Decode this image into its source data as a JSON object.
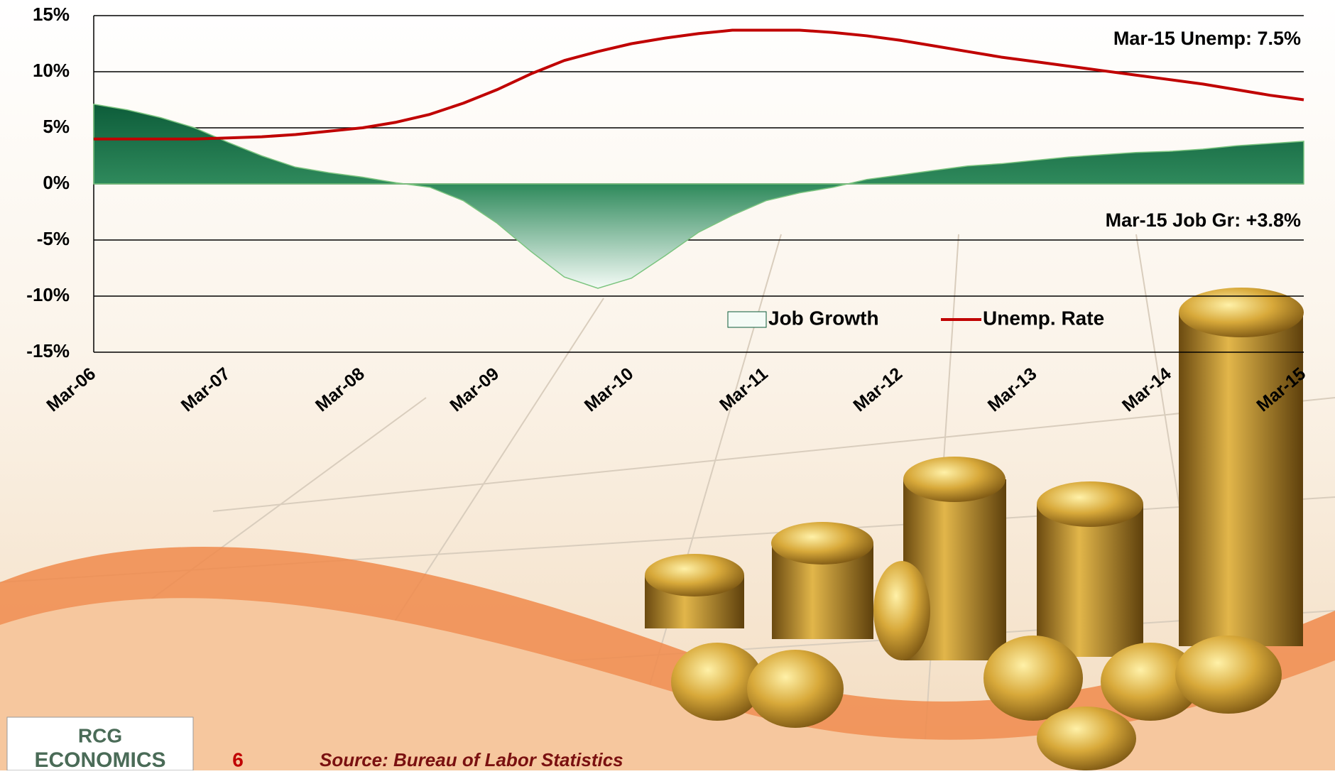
{
  "chart_data": {
    "type": "line",
    "categories": [
      "Mar-06",
      null,
      null,
      null,
      "Mar-07",
      null,
      null,
      null,
      "Mar-08",
      null,
      null,
      null,
      "Mar-09",
      null,
      null,
      null,
      "Mar-10",
      null,
      null,
      null,
      "Mar-11",
      null,
      null,
      null,
      "Mar-12",
      null,
      null,
      null,
      "Mar-13",
      null,
      null,
      null,
      "Mar-14",
      null,
      null,
      null,
      "Mar-15"
    ],
    "series": [
      {
        "name": "Job Growth",
        "type": "area",
        "color": "#0b5a38",
        "values": [
          7.1,
          6.6,
          5.9,
          5.0,
          3.7,
          2.5,
          1.5,
          1.0,
          0.6,
          0.1,
          -0.3,
          -1.5,
          -3.5,
          -6.0,
          -8.3,
          -9.3,
          -8.4,
          -6.4,
          -4.3,
          -2.8,
          -1.5,
          -0.8,
          -0.3,
          0.4,
          0.8,
          1.2,
          1.6,
          1.8,
          2.1,
          2.4,
          2.6,
          2.8,
          2.9,
          3.1,
          3.4,
          3.6,
          3.8
        ]
      },
      {
        "name": "Unemp. Rate",
        "type": "line",
        "color": "#c00000",
        "values": [
          4.0,
          4.0,
          4.0,
          4.0,
          4.1,
          4.2,
          4.4,
          4.7,
          5.0,
          5.5,
          6.2,
          7.2,
          8.4,
          9.8,
          11.0,
          11.8,
          12.5,
          13.0,
          13.4,
          13.7,
          13.7,
          13.7,
          13.5,
          13.2,
          12.8,
          12.3,
          11.8,
          11.3,
          10.9,
          10.5,
          10.1,
          9.7,
          9.3,
          8.9,
          8.4,
          7.9,
          7.5
        ]
      }
    ],
    "ylim": [
      -15,
      15
    ],
    "yticks": [
      {
        "value": -15,
        "label": "-15%"
      },
      {
        "value": -10,
        "label": "-10%"
      },
      {
        "value": -5,
        "label": "-5%"
      },
      {
        "value": 0,
        "label": "0%"
      },
      {
        "value": 5,
        "label": "5%"
      },
      {
        "value": 10,
        "label": "10%"
      },
      {
        "value": 15,
        "label": "15%"
      }
    ],
    "grid": true,
    "annotations": [
      "Mar-15 Unemp: 7.5%",
      "Mar-15 Job Gr: +3.8%"
    ]
  },
  "footer": {
    "logo_top": "RCG",
    "logo_bottom": "ECONOMICS",
    "page_number": "6",
    "source": "Source: Bureau of Labor Statistics"
  }
}
